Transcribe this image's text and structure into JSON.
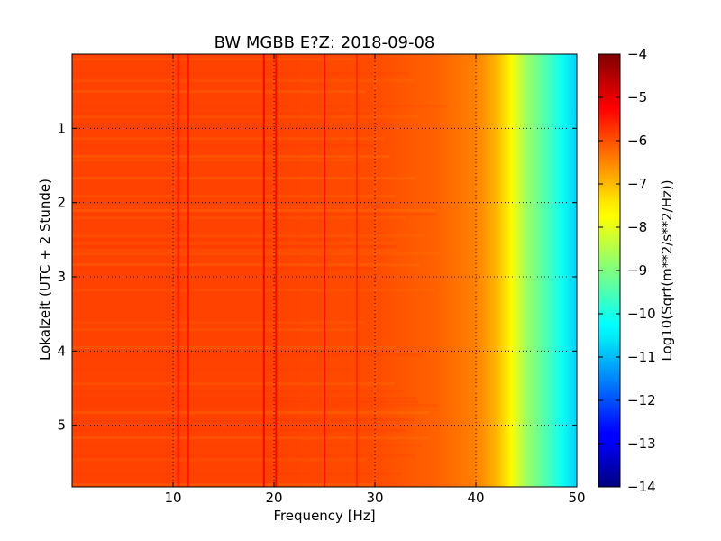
{
  "chart_data": {
    "type": "heatmap",
    "title": "BW MGBB E?Z: 2018-09-08",
    "xlabel": "Frequency [Hz]",
    "ylabel": "Lokalzeit (UTC + 2 Stunde)",
    "xlim": [
      0,
      50
    ],
    "ylim": [
      0,
      5.83
    ],
    "y_inverted": true,
    "x_ticks": [
      10,
      20,
      30,
      40,
      50
    ],
    "y_ticks": [
      1,
      2,
      3,
      4,
      5
    ],
    "grid": true,
    "grid_style": "dotted",
    "colormap": "jet",
    "colorbar": {
      "label": "Log10(Sqrt(m**2/s**2/Hz))",
      "range": [
        -14,
        -4
      ],
      "ticks": [
        -4,
        -5,
        -6,
        -7,
        -8,
        -9,
        -10,
        -11,
        -12,
        -13,
        -14
      ]
    },
    "level_profile": {
      "frequency_hz": [
        0,
        10,
        20,
        30,
        36,
        40,
        42,
        43.5,
        45,
        47,
        48.5,
        50
      ],
      "log10_amplitude": [
        -5.9,
        -5.9,
        -5.9,
        -6.0,
        -6.2,
        -6.5,
        -7.0,
        -7.7,
        -8.7,
        -9.5,
        -10.1,
        -10.7
      ]
    },
    "spectral_lines": [
      {
        "frequency_hz": 10.5,
        "log10_amplitude": -5.3
      },
      {
        "frequency_hz": 11.5,
        "log10_amplitude": -5.4
      },
      {
        "frequency_hz": 19.0,
        "log10_amplitude": -5.1
      },
      {
        "frequency_hz": 20.2,
        "log10_amplitude": -5.2
      },
      {
        "frequency_hz": 25.0,
        "log10_amplitude": -5.3
      },
      {
        "frequency_hz": 28.2,
        "log10_amplitude": -5.6
      }
    ]
  }
}
